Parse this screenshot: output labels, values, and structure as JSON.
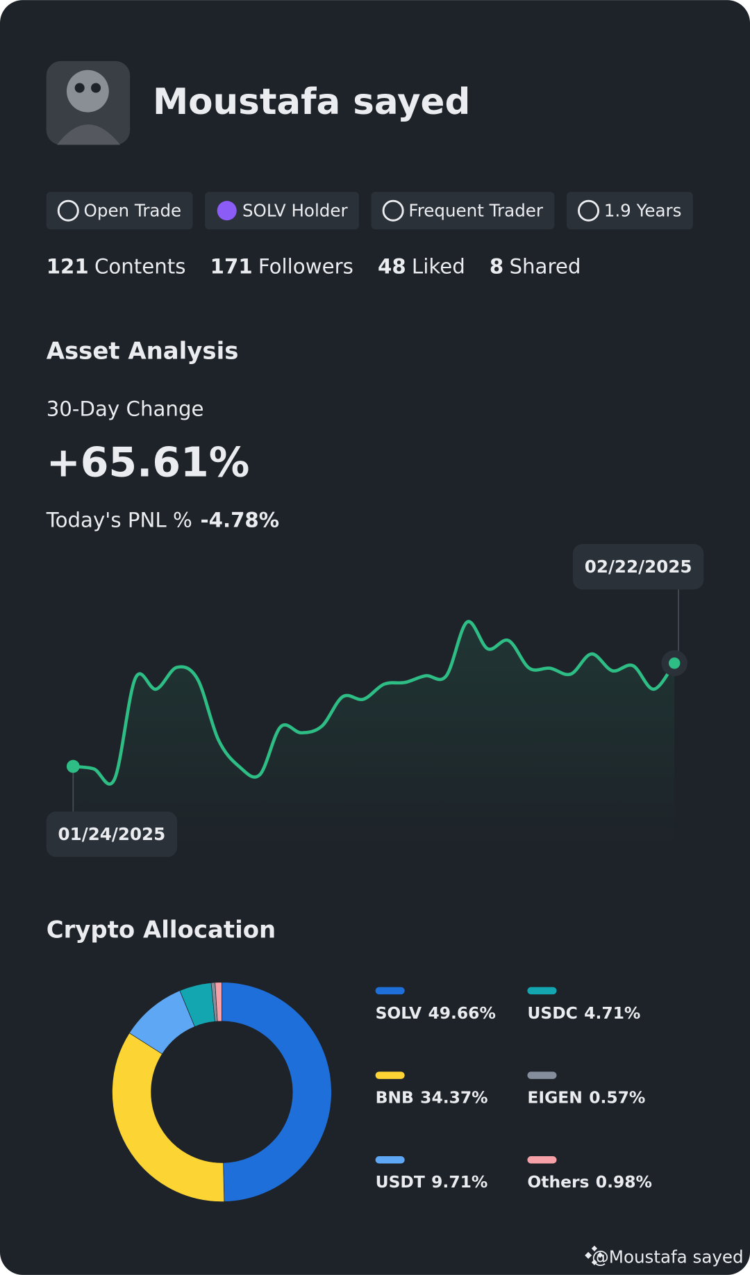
{
  "profile": {
    "name": "Moustafa sayed",
    "badges": [
      "Open Trade",
      "SOLV Holder",
      "Frequent Trader",
      "1.9 Years"
    ],
    "stats": [
      {
        "count": 121,
        "label": "Contents"
      },
      {
        "count": 171,
        "label": "Followers"
      },
      {
        "count": 48,
        "label": "Liked"
      },
      {
        "count": 8,
        "label": "Shared"
      }
    ]
  },
  "asset_analysis": {
    "title": "Asset Analysis",
    "change_label": "30-Day Change",
    "change": "+65.61%",
    "pnl_label": "Today's PNL %",
    "pnl": "-4.78%",
    "line": {
      "type": "line",
      "color": "#2ebd85",
      "start_label": "01/24/2025",
      "end_label": "02/22/2025",
      "values": [
        60,
        57,
        45,
        165,
        152,
        178,
        164,
        92,
        60,
        50,
        107,
        100,
        108,
        143,
        140,
        158,
        160,
        168,
        168,
        232,
        200,
        210,
        177,
        177,
        170,
        194,
        174,
        180,
        152,
        183
      ]
    }
  },
  "allocation": {
    "type": "donut",
    "title": "Crypto Allocation",
    "series": [
      {
        "name": "SOLV",
        "value": 49.66,
        "value_label": "49.66%",
        "color": "#1e6fd9"
      },
      {
        "name": "BNB",
        "value": 34.37,
        "value_label": "34.37%",
        "color": "#fcd535"
      },
      {
        "name": "USDT",
        "value": 9.71,
        "value_label": "9.71%",
        "color": "#5ea7f5"
      },
      {
        "name": "USDC",
        "value": 4.71,
        "value_label": "4.71%",
        "color": "#14a6b0"
      },
      {
        "name": "EIGEN",
        "value": 0.57,
        "value_label": "0.57%",
        "color": "#848e9c"
      },
      {
        "name": "Others",
        "value": 0.98,
        "value_label": "0.98%",
        "color": "#f6a0a8"
      }
    ]
  },
  "footer": "@Moustafa sayed"
}
